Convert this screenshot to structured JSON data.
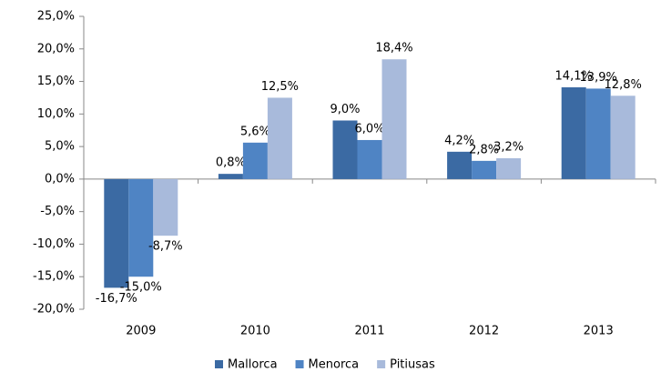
{
  "chart_data": {
    "type": "bar",
    "categories": [
      "2009",
      "2010",
      "2011",
      "2012",
      "2013"
    ],
    "series": [
      {
        "name": "Mallorca",
        "color": "#3b6aa3",
        "values": [
          -16.7,
          0.8,
          9.0,
          4.2,
          14.1
        ],
        "value_labels": [
          "-16,7%",
          "0,8%",
          "9,0%",
          "4,2%",
          "14,1%"
        ]
      },
      {
        "name": "Menorca",
        "color": "#4f84c4",
        "values": [
          -15.0,
          5.6,
          6.0,
          2.8,
          13.9
        ],
        "value_labels": [
          "-15,0%",
          "5,6%",
          "6,0%",
          "2,8%",
          "13,9%"
        ]
      },
      {
        "name": "Pitiusas",
        "color": "#a8badb",
        "values": [
          -8.7,
          12.5,
          18.4,
          3.2,
          12.8
        ],
        "value_labels": [
          "-8,7%",
          "12,5%",
          "18,4%",
          "3,2%",
          "12,8%"
        ]
      }
    ],
    "ylim": [
      -20,
      25
    ],
    "yticks": [
      {
        "value": -20,
        "label": "-20,0%"
      },
      {
        "value": -15,
        "label": "-15,0%"
      },
      {
        "value": -10,
        "label": "-10,0%"
      },
      {
        "value": -5,
        "label": "-5,0%"
      },
      {
        "value": 0,
        "label": "0,0%"
      },
      {
        "value": 5,
        "label": "5,0%"
      },
      {
        "value": 10,
        "label": "10,0%"
      },
      {
        "value": 15,
        "label": "15,0%"
      },
      {
        "value": 20,
        "label": "20,0%"
      },
      {
        "value": 25,
        "label": "25,0%"
      }
    ],
    "legend": "bottom"
  }
}
